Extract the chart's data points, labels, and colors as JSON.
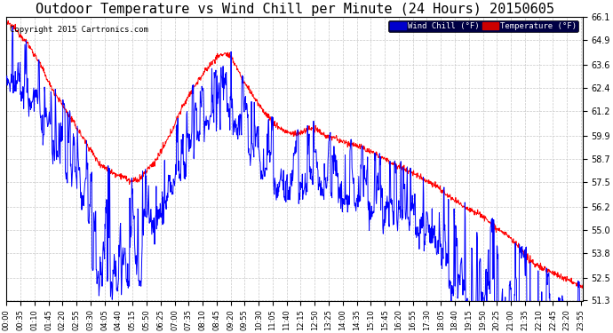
{
  "title": "Outdoor Temperature vs Wind Chill per Minute (24 Hours) 20150605",
  "copyright": "Copyright 2015 Cartronics.com",
  "ylim": [
    51.3,
    66.1
  ],
  "yticks": [
    51.3,
    52.5,
    53.8,
    55.0,
    56.2,
    57.5,
    58.7,
    59.9,
    61.2,
    62.4,
    63.6,
    64.9,
    66.1
  ],
  "temp_color": "#ff0000",
  "wind_color": "#0000ff",
  "wind_label": "Wind Chill (°F)",
  "temp_label": "Temperature (°F)",
  "wind_label_bg": "#0000cc",
  "temp_label_bg": "#cc0000",
  "background_color": "#ffffff",
  "grid_color": "#c8c8c8",
  "title_fontsize": 11,
  "tick_fontsize": 7,
  "xtick_rotation": 90,
  "tick_step": 35
}
